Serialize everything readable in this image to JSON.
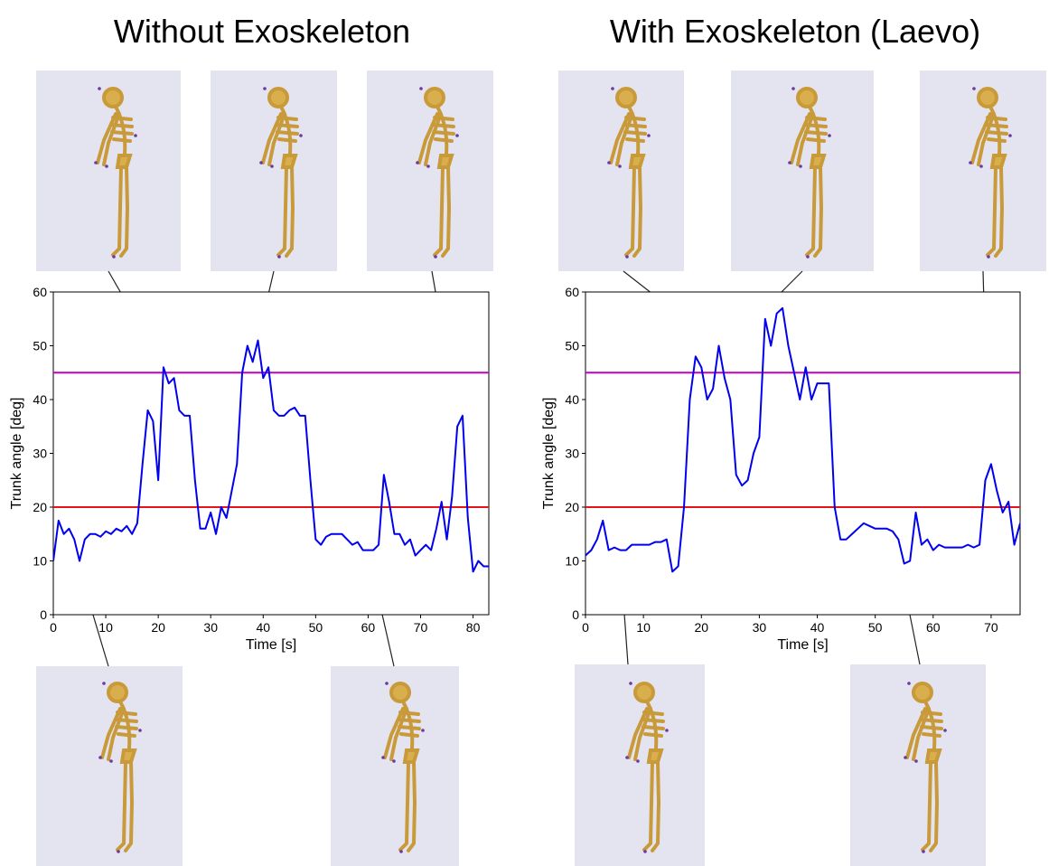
{
  "chart_data": [
    {
      "type": "line",
      "title": "Without Exoskeleton",
      "xlabel": "Time [s]",
      "ylabel": "Trunk angle [deg]",
      "xlim": [
        0,
        83
      ],
      "xticks": [
        0,
        10,
        20,
        30,
        40,
        50,
        60,
        70,
        80
      ],
      "ylim": [
        0,
        60
      ],
      "yticks": [
        0,
        10,
        20,
        30,
        40,
        50,
        60
      ],
      "hlines": [
        {
          "value": 45,
          "color": "#c000c0"
        },
        {
          "value": 20,
          "color": "#e8141c"
        }
      ],
      "x": [
        0,
        1,
        2,
        3,
        4,
        5,
        6,
        7,
        8,
        9,
        10,
        11,
        12,
        13,
        14,
        15,
        16,
        17,
        18,
        19,
        20,
        21,
        22,
        23,
        24,
        25,
        26,
        27,
        28,
        29,
        30,
        31,
        32,
        33,
        34,
        35,
        36,
        37,
        38,
        39,
        40,
        41,
        42,
        43,
        44,
        45,
        46,
        47,
        48,
        49,
        50,
        51,
        52,
        53,
        54,
        55,
        56,
        57,
        58,
        59,
        60,
        61,
        62,
        63,
        64,
        65,
        66,
        67,
        68,
        69,
        70,
        71,
        72,
        73,
        74,
        75,
        76,
        77,
        78,
        79,
        80,
        81,
        82,
        83
      ],
      "series": [
        {
          "color": "#0000ee",
          "values": [
            10,
            17.5,
            15,
            16,
            14,
            10,
            14,
            15,
            15,
            14.5,
            15.5,
            15,
            16,
            15.5,
            16.5,
            15,
            17,
            28,
            38,
            36,
            25,
            46,
            43,
            44,
            38,
            37,
            37,
            25,
            16,
            16,
            19,
            15,
            20,
            18,
            23,
            28,
            45,
            50,
            47,
            51,
            44,
            46,
            38,
            37,
            37,
            38,
            38.5,
            37,
            37,
            25,
            14,
            13,
            14.5,
            15,
            15,
            15,
            14,
            13,
            13.5,
            12,
            12,
            12,
            13,
            26,
            21,
            15,
            15,
            13,
            14,
            11,
            12,
            13,
            12,
            16,
            21,
            14,
            22,
            35,
            37,
            18,
            8,
            10,
            9,
            9
          ]
        }
      ]
    },
    {
      "type": "line",
      "title": "With Exoskeleton (Laevo)",
      "xlabel": "Time [s]",
      "ylabel": "Trunk angle [deg]",
      "xlim": [
        0,
        75
      ],
      "xticks": [
        0,
        10,
        20,
        30,
        40,
        50,
        60,
        70
      ],
      "ylim": [
        0,
        60
      ],
      "yticks": [
        0,
        10,
        20,
        30,
        40,
        50,
        60
      ],
      "hlines": [
        {
          "value": 45,
          "color": "#c000c0"
        },
        {
          "value": 20,
          "color": "#e8141c"
        }
      ],
      "x": [
        0,
        1,
        2,
        3,
        4,
        5,
        6,
        7,
        8,
        9,
        10,
        11,
        12,
        13,
        14,
        15,
        16,
        17,
        18,
        19,
        20,
        21,
        22,
        23,
        24,
        25,
        26,
        27,
        28,
        29,
        30,
        31,
        32,
        33,
        34,
        35,
        36,
        37,
        38,
        39,
        40,
        41,
        42,
        43,
        44,
        45,
        46,
        47,
        48,
        49,
        50,
        51,
        52,
        53,
        54,
        55,
        56,
        57,
        58,
        59,
        60,
        61,
        62,
        63,
        64,
        65,
        66,
        67,
        68,
        69,
        70,
        71,
        72,
        73,
        74,
        75
      ],
      "series": [
        {
          "color": "#0000ee",
          "values": [
            11,
            12,
            14,
            17.5,
            12,
            12.5,
            12,
            12,
            13,
            13,
            13,
            13,
            13.5,
            13.5,
            14,
            8,
            9,
            20,
            40,
            48,
            46,
            40,
            42,
            50,
            44,
            40,
            26,
            24,
            25,
            30,
            33,
            55,
            50,
            56,
            57,
            50,
            45,
            40,
            46,
            40,
            43,
            43,
            43,
            20,
            14,
            14,
            15,
            16,
            17,
            16.5,
            16,
            16,
            16,
            15.5,
            14,
            9.5,
            10,
            19,
            13,
            14,
            12,
            13,
            12.5,
            12.5,
            12.5,
            12.5,
            13,
            12.5,
            13,
            25,
            28,
            23,
            19,
            21,
            13,
            17
          ]
        }
      ]
    }
  ]
}
